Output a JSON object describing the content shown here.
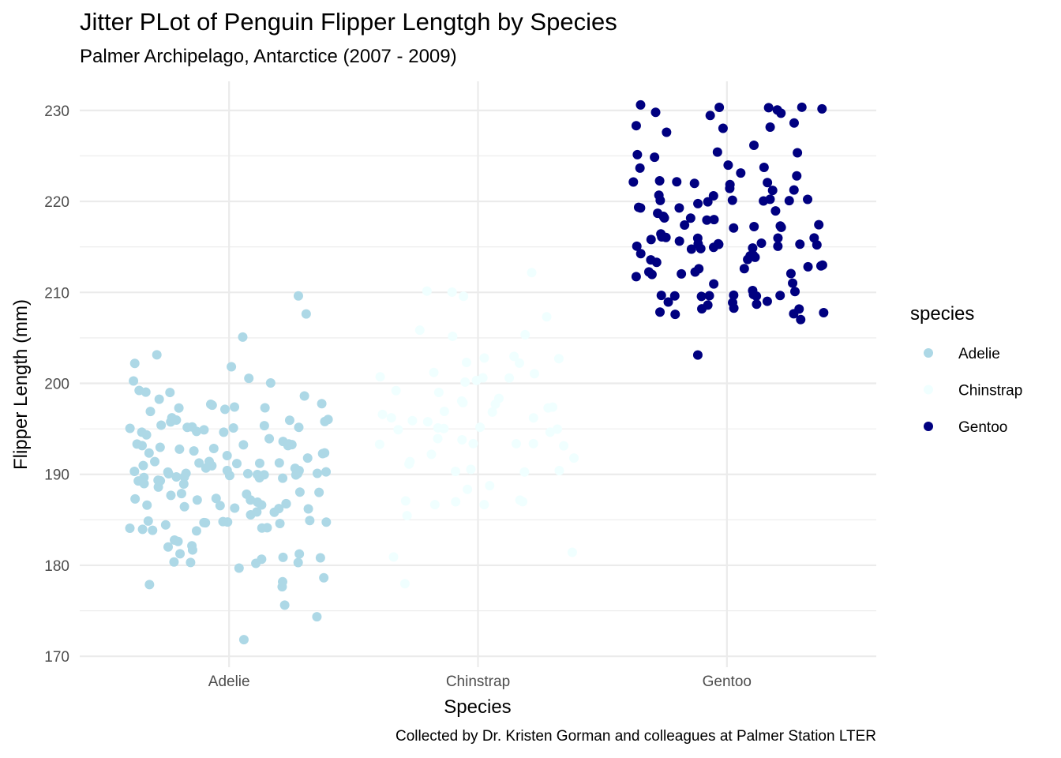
{
  "chart_data": {
    "type": "scatter",
    "title": "Jitter PLot of Penguin Flipper Lengtgh by Species",
    "subtitle": "Palmer Archipelago, Antarctice (2007 - 2009)",
    "caption": "Collected by Dr. Kristen Gorman and colleagues at Palmer Station LTER",
    "xlabel": "Species",
    "ylabel": "Flipper Length (mm)",
    "categories": [
      "Adelie",
      "Chinstrap",
      "Gentoo"
    ],
    "ylim": [
      168.8,
      233.2
    ],
    "y_ticks": [
      170,
      180,
      190,
      200,
      210,
      220,
      230
    ],
    "grid": true,
    "legend": {
      "title": "species",
      "position": "right"
    },
    "jitter_width": 0.4,
    "series": [
      {
        "name": "Adelie",
        "color": "#ADD8E6",
        "values": [
          181,
          186,
          195,
          193,
          190,
          181,
          195,
          193,
          190,
          186,
          180,
          182,
          191,
          198,
          185,
          195,
          197,
          184,
          194,
          174,
          180,
          189,
          185,
          180,
          187,
          183,
          187,
          172,
          180,
          178,
          178,
          188,
          184,
          195,
          196,
          190,
          180,
          181,
          184,
          182,
          195,
          186,
          196,
          185,
          190,
          182,
          179,
          190,
          191,
          186,
          188,
          190,
          200,
          187,
          191,
          186,
          193,
          181,
          194,
          185,
          195,
          185,
          192,
          184,
          192,
          195,
          188,
          190,
          198,
          190,
          190,
          196,
          197,
          190,
          195,
          191,
          184,
          187,
          195,
          189,
          196,
          187,
          193,
          191,
          194,
          190,
          189,
          189,
          190,
          202,
          205,
          185,
          186,
          187,
          208,
          190,
          196,
          178,
          192,
          192,
          203,
          183,
          190,
          193,
          184,
          199,
          190,
          181,
          197,
          198,
          191,
          193,
          197,
          191,
          196,
          188,
          199,
          189,
          189,
          187,
          198,
          176,
          202,
          186,
          199,
          191,
          195,
          191,
          210,
          190,
          197,
          193,
          199,
          187,
          190,
          191,
          200,
          185,
          193,
          193,
          187,
          188,
          190,
          192,
          185,
          190,
          184,
          195,
          193,
          187,
          201
        ]
      },
      {
        "name": "Chinstrap",
        "color": "#F0FFFF",
        "values": [
          192,
          196,
          193,
          188,
          197,
          198,
          178,
          197,
          195,
          198,
          193,
          194,
          185,
          201,
          190,
          201,
          197,
          181,
          190,
          195,
          181,
          191,
          187,
          193,
          195,
          197,
          200,
          200,
          191,
          205,
          187,
          201,
          187,
          203,
          195,
          199,
          195,
          210,
          192,
          205,
          210,
          187,
          196,
          196,
          196,
          201,
          190,
          212,
          187,
          198,
          199,
          201,
          193,
          203,
          187,
          197,
          191,
          203,
          202,
          194,
          206,
          189,
          195,
          207,
          202,
          193,
          210,
          198
        ]
      },
      {
        "name": "Gentoo",
        "color": "#000080",
        "values": [
          211,
          230,
          210,
          218,
          215,
          210,
          211,
          219,
          209,
          215,
          214,
          216,
          214,
          213,
          210,
          217,
          210,
          221,
          209,
          222,
          218,
          215,
          213,
          215,
          215,
          215,
          216,
          215,
          210,
          220,
          222,
          209,
          207,
          230,
          220,
          220,
          213,
          219,
          208,
          208,
          208,
          225,
          210,
          216,
          222,
          217,
          210,
          225,
          213,
          215,
          210,
          220,
          210,
          225,
          217,
          220,
          208,
          220,
          208,
          224,
          208,
          221,
          214,
          231,
          219,
          230,
          214,
          229,
          220,
          223,
          216,
          221,
          221,
          217,
          216,
          230,
          209,
          220,
          215,
          223,
          212,
          221,
          212,
          224,
          212,
          228,
          218,
          218,
          212,
          230,
          218,
          228,
          212,
          224,
          214,
          226,
          216,
          222,
          203,
          225,
          219,
          228,
          215,
          228,
          216,
          215,
          210,
          219,
          208,
          209,
          216,
          229,
          213,
          230,
          217,
          230,
          217,
          222,
          214,
          215,
          222,
          212,
          213
        ]
      }
    ]
  }
}
